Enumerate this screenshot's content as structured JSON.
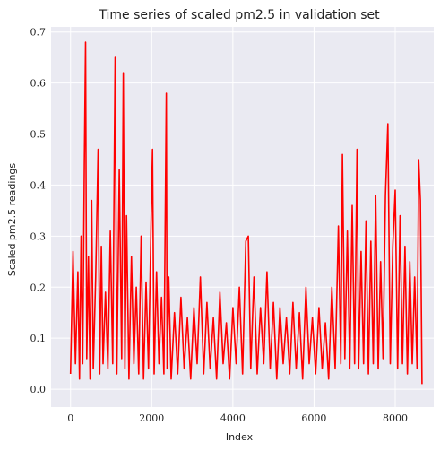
{
  "chart_data": {
    "type": "line",
    "title": "Time series of scaled pm2.5 in validation set",
    "xlabel": "Index",
    "ylabel": "Scaled pm2.5 readings",
    "xlim": [
      -480,
      8950
    ],
    "ylim": [
      -0.035,
      0.71
    ],
    "x_ticks": [
      0,
      2000,
      4000,
      6000,
      8000
    ],
    "y_ticks": [
      0.0,
      0.1,
      0.2,
      0.3,
      0.4,
      0.5,
      0.6,
      0.7
    ],
    "x_tick_labels": [
      "0",
      "2000",
      "4000",
      "6000",
      "8000"
    ],
    "y_tick_labels": [
      "0.0",
      "0.1",
      "0.2",
      "0.3",
      "0.4",
      "0.5",
      "0.6",
      "0.7"
    ],
    "grid": true,
    "legend": "none",
    "colors": {
      "line": "#ff0000",
      "background": "#eaeaf2",
      "grid": "#ffffff"
    },
    "series": [
      {
        "x": [
          0,
          60,
          120,
          180,
          220,
          260,
          300,
          340,
          370,
          400,
          440,
          480,
          520,
          560,
          620,
          680,
          720,
          760,
          800,
          860,
          920,
          980,
          1040,
          1080,
          1100,
          1140,
          1200,
          1260,
          1300,
          1340,
          1380,
          1440,
          1500,
          1560,
          1620,
          1680,
          1740,
          1800,
          1860,
          1920,
          1980,
          2020,
          2060,
          2120,
          2180,
          2240,
          2300,
          2360,
          2380,
          2420,
          2480,
          2560,
          2640,
          2720,
          2800,
          2880,
          2960,
          3040,
          3120,
          3200,
          3280,
          3360,
          3440,
          3520,
          3600,
          3680,
          3760,
          3840,
          3920,
          4000,
          4080,
          4160,
          4240,
          4320,
          4380,
          4440,
          4520,
          4600,
          4680,
          4760,
          4840,
          4920,
          5000,
          5080,
          5160,
          5240,
          5320,
          5400,
          5480,
          5560,
          5640,
          5720,
          5800,
          5880,
          5960,
          6040,
          6120,
          6200,
          6280,
          6360,
          6440,
          6520,
          6600,
          6660,
          6700,
          6760,
          6820,
          6880,
          6940,
          7000,
          7060,
          7100,
          7160,
          7220,
          7280,
          7340,
          7400,
          7460,
          7520,
          7580,
          7640,
          7700,
          7760,
          7820,
          7880,
          7940,
          8000,
          8060,
          8120,
          8180,
          8240,
          8300,
          8360,
          8420,
          8480,
          8540,
          8580,
          8620,
          8660
        ],
        "values": [
          0.03,
          0.27,
          0.05,
          0.23,
          0.02,
          0.3,
          0.05,
          0.44,
          0.68,
          0.06,
          0.26,
          0.02,
          0.37,
          0.04,
          0.22,
          0.47,
          0.03,
          0.28,
          0.05,
          0.19,
          0.04,
          0.31,
          0.05,
          0.46,
          0.65,
          0.03,
          0.43,
          0.06,
          0.62,
          0.04,
          0.34,
          0.02,
          0.26,
          0.05,
          0.2,
          0.03,
          0.3,
          0.02,
          0.21,
          0.04,
          0.31,
          0.47,
          0.03,
          0.23,
          0.05,
          0.18,
          0.03,
          0.58,
          0.04,
          0.22,
          0.02,
          0.15,
          0.03,
          0.18,
          0.04,
          0.14,
          0.02,
          0.16,
          0.05,
          0.22,
          0.03,
          0.17,
          0.04,
          0.14,
          0.02,
          0.19,
          0.05,
          0.13,
          0.02,
          0.16,
          0.05,
          0.2,
          0.03,
          0.29,
          0.3,
          0.04,
          0.22,
          0.03,
          0.16,
          0.05,
          0.23,
          0.04,
          0.17,
          0.02,
          0.16,
          0.05,
          0.14,
          0.03,
          0.17,
          0.04,
          0.15,
          0.02,
          0.2,
          0.05,
          0.14,
          0.03,
          0.16,
          0.04,
          0.13,
          0.02,
          0.2,
          0.04,
          0.32,
          0.05,
          0.46,
          0.06,
          0.31,
          0.04,
          0.36,
          0.05,
          0.47,
          0.04,
          0.27,
          0.05,
          0.33,
          0.03,
          0.29,
          0.05,
          0.38,
          0.04,
          0.25,
          0.06,
          0.38,
          0.52,
          0.05,
          0.28,
          0.39,
          0.04,
          0.34,
          0.05,
          0.28,
          0.03,
          0.25,
          0.05,
          0.22,
          0.04,
          0.45,
          0.37,
          0.01
        ]
      }
    ]
  }
}
